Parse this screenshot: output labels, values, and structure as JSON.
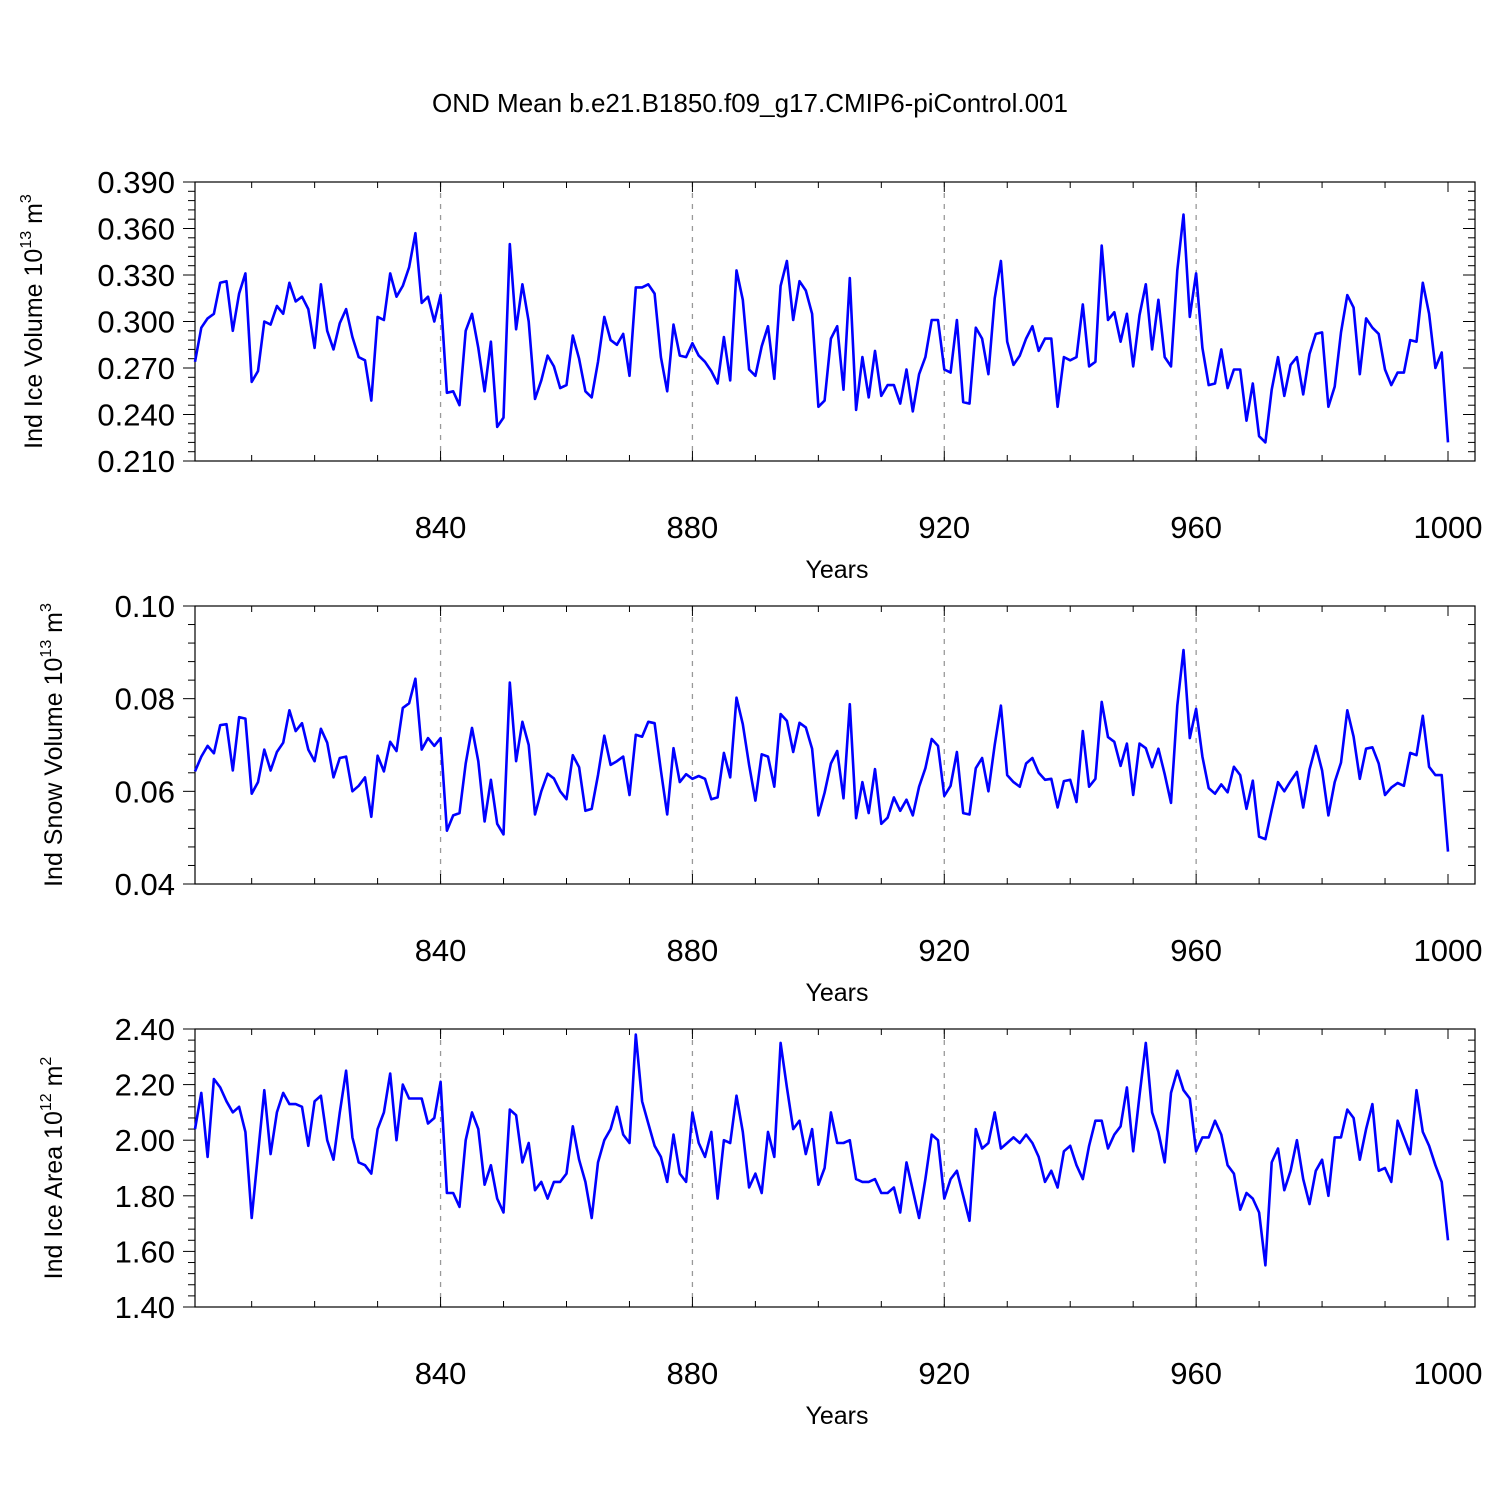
{
  "title": "OND Mean b.e21.B1850.f09_g17.CMIP6-piControl.001",
  "colors": {
    "series": "#0000ff",
    "gridline": "#999999",
    "axis": "#000000"
  },
  "chart_data": [
    {
      "type": "line",
      "ylabel": "Ind Ice Volume 10",
      "ylabel_exp": "13",
      "ylabel_unit": "m",
      "ylabel_unit_exp": "3",
      "xlabel": "Years",
      "xlim": [
        801,
        1000
      ],
      "xticks": [
        840,
        880,
        920,
        960,
        1000
      ],
      "xtick_labels": [
        "840",
        "880",
        "920",
        "960",
        "1000"
      ],
      "ylim": [
        0.21,
        0.39
      ],
      "yticks": [
        0.21,
        0.24,
        0.27,
        0.3,
        0.33,
        0.36,
        0.39
      ],
      "ytick_labels": [
        "0.210",
        "0.240",
        "0.270",
        "0.300",
        "0.330",
        "0.360",
        "0.390"
      ],
      "vlines": [
        840,
        880,
        920,
        960
      ],
      "x_start": 801,
      "values": [
        0.274,
        0.296,
        0.302,
        0.305,
        0.325,
        0.326,
        0.294,
        0.318,
        0.331,
        0.261,
        0.268,
        0.3,
        0.298,
        0.31,
        0.305,
        0.325,
        0.313,
        0.316,
        0.308,
        0.283,
        0.324,
        0.294,
        0.282,
        0.299,
        0.308,
        0.29,
        0.277,
        0.275,
        0.249,
        0.303,
        0.301,
        0.331,
        0.316,
        0.323,
        0.335,
        0.357,
        0.312,
        0.316,
        0.3,
        0.317,
        0.254,
        0.255,
        0.246,
        0.294,
        0.305,
        0.283,
        0.255,
        0.287,
        0.232,
        0.238,
        0.35,
        0.295,
        0.324,
        0.3,
        0.25,
        0.262,
        0.278,
        0.271,
        0.257,
        0.259,
        0.291,
        0.276,
        0.255,
        0.251,
        0.274,
        0.303,
        0.288,
        0.285,
        0.292,
        0.265,
        0.322,
        0.322,
        0.324,
        0.318,
        0.277,
        0.255,
        0.298,
        0.278,
        0.277,
        0.286,
        0.278,
        0.274,
        0.268,
        0.26,
        0.29,
        0.262,
        0.333,
        0.314,
        0.269,
        0.265,
        0.284,
        0.297,
        0.263,
        0.323,
        0.339,
        0.301,
        0.326,
        0.32,
        0.305,
        0.245,
        0.249,
        0.289,
        0.297,
        0.256,
        0.328,
        0.243,
        0.277,
        0.251,
        0.281,
        0.252,
        0.259,
        0.259,
        0.247,
        0.269,
        0.242,
        0.266,
        0.277,
        0.301,
        0.301,
        0.269,
        0.267,
        0.301,
        0.248,
        0.247,
        0.296,
        0.289,
        0.266,
        0.315,
        0.339,
        0.287,
        0.272,
        0.278,
        0.289,
        0.297,
        0.281,
        0.289,
        0.289,
        0.245,
        0.277,
        0.275,
        0.277,
        0.311,
        0.271,
        0.274,
        0.349,
        0.301,
        0.306,
        0.287,
        0.305,
        0.271,
        0.304,
        0.324,
        0.282,
        0.314,
        0.277,
        0.271,
        0.333,
        0.369,
        0.303,
        0.331,
        0.283,
        0.259,
        0.26,
        0.282,
        0.257,
        0.269,
        0.269,
        0.236,
        0.26,
        0.226,
        0.222,
        0.256,
        0.277,
        0.252,
        0.272,
        0.277,
        0.253,
        0.279,
        0.292,
        0.293,
        0.245,
        0.258,
        0.293,
        0.317,
        0.309,
        0.266,
        0.302,
        0.296,
        0.292,
        0.269,
        0.259,
        0.267,
        0.267,
        0.288,
        0.287,
        0.325,
        0.305,
        0.27,
        0.28,
        0.222
      ]
    },
    {
      "type": "line",
      "ylabel": "Ind Snow Volume 10",
      "ylabel_exp": "13",
      "ylabel_unit": "m",
      "ylabel_unit_exp": "3",
      "xlabel": "Years",
      "xlim": [
        801,
        1000
      ],
      "xticks": [
        840,
        880,
        920,
        960,
        1000
      ],
      "xtick_labels": [
        "840",
        "880",
        "920",
        "960",
        "1000"
      ],
      "ylim": [
        0.04,
        0.1
      ],
      "yticks": [
        0.04,
        0.06,
        0.08,
        0.1
      ],
      "ytick_labels": [
        "0.04",
        "0.06",
        "0.08",
        "0.10"
      ],
      "vlines": [
        840,
        880,
        920,
        960
      ],
      "x_start": 801,
      "values": [
        0.0643,
        0.0675,
        0.0698,
        0.0682,
        0.0743,
        0.0745,
        0.0645,
        0.076,
        0.0757,
        0.0595,
        0.062,
        0.069,
        0.0645,
        0.0685,
        0.0705,
        0.0775,
        0.073,
        0.0747,
        0.069,
        0.0665,
        0.0735,
        0.0705,
        0.063,
        0.0672,
        0.0675,
        0.06,
        0.0612,
        0.063,
        0.0545,
        0.0677,
        0.0643,
        0.0707,
        0.0687,
        0.078,
        0.079,
        0.0843,
        0.069,
        0.0715,
        0.0698,
        0.0715,
        0.0515,
        0.0548,
        0.0553,
        0.066,
        0.0737,
        0.0665,
        0.0535,
        0.0625,
        0.053,
        0.0507,
        0.0835,
        0.0665,
        0.075,
        0.07,
        0.055,
        0.06,
        0.0638,
        0.0628,
        0.06,
        0.0583,
        0.0678,
        0.0652,
        0.0558,
        0.0562,
        0.0635,
        0.072,
        0.0657,
        0.0665,
        0.0675,
        0.0592,
        0.0722,
        0.0718,
        0.075,
        0.0747,
        0.0645,
        0.055,
        0.0693,
        0.062,
        0.0637,
        0.0627,
        0.0633,
        0.0627,
        0.0583,
        0.0587,
        0.0683,
        0.063,
        0.0802,
        0.0745,
        0.0657,
        0.058,
        0.068,
        0.0675,
        0.061,
        0.0767,
        0.0752,
        0.0685,
        0.0748,
        0.0738,
        0.0692,
        0.0548,
        0.0597,
        0.066,
        0.0687,
        0.0585,
        0.0788,
        0.0542,
        0.062,
        0.0553,
        0.0648,
        0.053,
        0.0543,
        0.0587,
        0.0558,
        0.0582,
        0.0548,
        0.061,
        0.065,
        0.0713,
        0.0698,
        0.059,
        0.0612,
        0.0685,
        0.0553,
        0.055,
        0.065,
        0.0672,
        0.06,
        0.07,
        0.0785,
        0.0635,
        0.062,
        0.061,
        0.066,
        0.0672,
        0.064,
        0.0625,
        0.0627,
        0.0565,
        0.0622,
        0.0625,
        0.0577,
        0.073,
        0.061,
        0.0627,
        0.0793,
        0.0717,
        0.0707,
        0.0655,
        0.0703,
        0.0592,
        0.0703,
        0.0693,
        0.0652,
        0.0692,
        0.0637,
        0.0575,
        0.0785,
        0.0905,
        0.0715,
        0.0778,
        0.0675,
        0.0607,
        0.0595,
        0.0615,
        0.0598,
        0.0653,
        0.0635,
        0.0562,
        0.0623,
        0.0502,
        0.0497,
        0.056,
        0.062,
        0.06,
        0.0622,
        0.0642,
        0.0565,
        0.0647,
        0.0698,
        0.0645,
        0.0548,
        0.062,
        0.0662,
        0.0775,
        0.0718,
        0.0627,
        0.0692,
        0.0695,
        0.066,
        0.0592,
        0.0608,
        0.0618,
        0.0612,
        0.0683,
        0.0678,
        0.0763,
        0.0653,
        0.0635,
        0.0635,
        0.047
      ]
    },
    {
      "type": "line",
      "ylabel": "Ind Ice Area 10",
      "ylabel_exp": "12",
      "ylabel_unit": "m",
      "ylabel_unit_exp": "2",
      "xlabel": "Years",
      "xlim": [
        801,
        1000
      ],
      "xticks": [
        840,
        880,
        920,
        960,
        1000
      ],
      "xtick_labels": [
        "840",
        "880",
        "920",
        "960",
        "1000"
      ],
      "ylim": [
        1.4,
        2.4
      ],
      "yticks": [
        1.4,
        1.6,
        1.8,
        2.0,
        2.2,
        2.4
      ],
      "ytick_labels": [
        "1.40",
        "1.60",
        "1.80",
        "2.00",
        "2.20",
        "2.40"
      ],
      "vlines": [
        840,
        880,
        920,
        960
      ],
      "x_start": 801,
      "values": [
        2.04,
        2.17,
        1.94,
        2.22,
        2.19,
        2.14,
        2.1,
        2.12,
        2.03,
        1.72,
        1.95,
        2.18,
        1.95,
        2.1,
        2.17,
        2.13,
        2.13,
        2.12,
        1.98,
        2.14,
        2.16,
        2.0,
        1.93,
        2.1,
        2.25,
        2.01,
        1.92,
        1.91,
        1.88,
        2.04,
        2.1,
        2.24,
        2.0,
        2.2,
        2.15,
        2.15,
        2.15,
        2.06,
        2.08,
        2.21,
        1.81,
        1.81,
        1.76,
        2.0,
        2.1,
        2.04,
        1.84,
        1.91,
        1.79,
        1.74,
        2.11,
        2.09,
        1.92,
        1.99,
        1.82,
        1.85,
        1.79,
        1.85,
        1.85,
        1.88,
        2.05,
        1.93,
        1.85,
        1.72,
        1.92,
        2.0,
        2.04,
        2.12,
        2.02,
        1.99,
        2.38,
        2.14,
        2.06,
        1.98,
        1.94,
        1.85,
        2.02,
        1.88,
        1.85,
        2.1,
        1.99,
        1.94,
        2.03,
        1.79,
        2.0,
        1.99,
        2.16,
        2.03,
        1.83,
        1.88,
        1.81,
        2.03,
        1.94,
        2.35,
        2.19,
        2.04,
        2.07,
        1.95,
        2.04,
        1.84,
        1.9,
        2.1,
        1.99,
        1.99,
        2.0,
        1.86,
        1.85,
        1.85,
        1.86,
        1.81,
        1.81,
        1.83,
        1.74,
        1.92,
        1.82,
        1.72,
        1.86,
        2.02,
        2.0,
        1.79,
        1.86,
        1.89,
        1.8,
        1.71,
        2.04,
        1.97,
        1.99,
        2.1,
        1.97,
        1.99,
        2.01,
        1.99,
        2.02,
        1.99,
        1.94,
        1.85,
        1.89,
        1.83,
        1.96,
        1.98,
        1.91,
        1.86,
        1.98,
        2.07,
        2.07,
        1.97,
        2.02,
        2.05,
        2.19,
        1.96,
        2.16,
        2.35,
        2.1,
        2.03,
        1.92,
        2.17,
        2.25,
        2.18,
        2.15,
        1.96,
        2.01,
        2.01,
        2.07,
        2.02,
        1.91,
        1.88,
        1.75,
        1.81,
        1.79,
        1.74,
        1.55,
        1.92,
        1.97,
        1.82,
        1.89,
        2.0,
        1.86,
        1.77,
        1.89,
        1.93,
        1.8,
        2.01,
        2.01,
        2.11,
        2.08,
        1.93,
        2.04,
        2.13,
        1.89,
        1.9,
        1.85,
        2.07,
        2.01,
        1.95,
        2.18,
        2.03,
        1.98,
        1.91,
        1.85,
        1.64
      ]
    }
  ]
}
